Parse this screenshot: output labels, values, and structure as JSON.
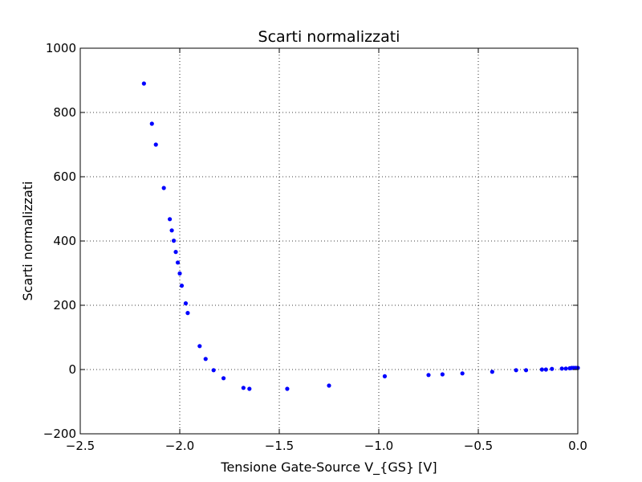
{
  "chart_data": {
    "type": "scatter",
    "title": "Scarti normalizzati",
    "xlabel": "Tensione Gate-Source V_{GS} [V]",
    "ylabel": "Scarti normalizzati",
    "xlim": [
      -2.5,
      0.0
    ],
    "ylim": [
      -200,
      1000
    ],
    "xticks": [
      -2.5,
      -2.0,
      -1.5,
      -1.0,
      -0.5,
      0.0
    ],
    "xtick_labels": [
      "−2.5",
      "−2.0",
      "−1.5",
      "−1.0",
      "−0.5",
      "0.0"
    ],
    "yticks": [
      -200,
      0,
      200,
      400,
      600,
      800,
      1000
    ],
    "ytick_labels": [
      "−200",
      "0",
      "200",
      "400",
      "600",
      "800",
      "1000"
    ],
    "grid": true,
    "marker_color": "#0000ff",
    "series": [
      {
        "x": [
          -2.18,
          -2.14,
          -2.12,
          -2.08,
          -2.05,
          -2.04,
          -2.03,
          -2.02,
          -2.01,
          -2.0,
          -1.99,
          -1.97,
          -1.96,
          -1.9,
          -1.87,
          -1.83,
          -1.78,
          -1.68,
          -1.65,
          -1.46,
          -1.25,
          -0.97,
          -0.75,
          -0.68,
          -0.58,
          -0.43,
          -0.31,
          -0.26,
          -0.18,
          -0.16,
          -0.13,
          -0.08,
          -0.06,
          -0.04,
          -0.03,
          -0.02,
          -0.01,
          0.0
        ],
        "y": [
          890,
          765,
          700,
          565,
          468,
          433,
          401,
          366,
          333,
          299,
          261,
          206,
          176,
          73,
          33,
          -2,
          -27,
          -57,
          -60,
          -60,
          -50,
          -21,
          -17,
          -15,
          -12,
          -7,
          -2,
          -2,
          0,
          0,
          2,
          3,
          3,
          4,
          5,
          5,
          5,
          5
        ]
      }
    ]
  }
}
